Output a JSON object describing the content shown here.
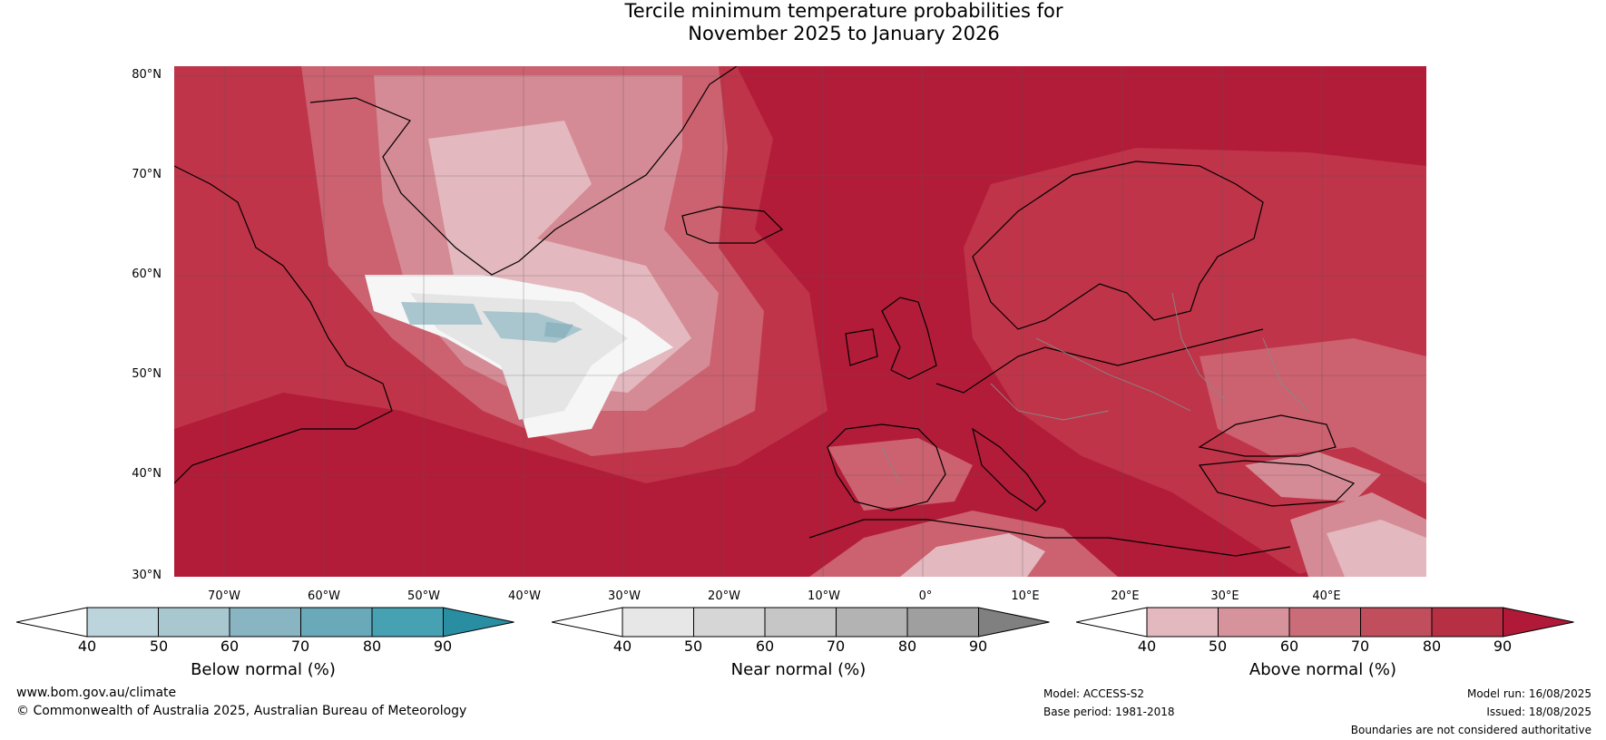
{
  "title": {
    "line1": "Tercile minimum temperature probabilities for",
    "line2": "November 2025 to January 2026"
  },
  "map": {
    "lat_labels": [
      "80°N",
      "70°N",
      "60°N",
      "50°N",
      "40°N",
      "30°N"
    ],
    "lon_labels": [
      "70°W",
      "60°W",
      "50°W",
      "40°W",
      "30°W",
      "20°W",
      "10°W",
      "0°",
      "10°E",
      "20°E",
      "30°E",
      "40°E"
    ],
    "colors": {
      "above_90": "#b21c39",
      "above_80": "#bf3448",
      "above_70": "#cc6170",
      "above_60": "#d58b95",
      "above_50": "#e3b8bf",
      "near_40": "#f6f6f6",
      "near_50": "#e5e5e5",
      "below_50": "#a9c6ce",
      "below_60": "#8fb5c1"
    }
  },
  "colorbars": [
    {
      "title": "Below normal (%)",
      "ticks": [
        "40",
        "50",
        "60",
        "70",
        "80",
        "90"
      ],
      "colors": [
        "#ffffff",
        "#bcd5dc",
        "#a8c7cf",
        "#89b4c1",
        "#6aa9ba",
        "#46a1b3",
        "#2a8ea3"
      ]
    },
    {
      "title": "Near normal (%)",
      "ticks": [
        "40",
        "50",
        "60",
        "70",
        "80",
        "90"
      ],
      "colors": [
        "#ffffff",
        "#e7e7e7",
        "#d6d6d6",
        "#c6c6c6",
        "#b3b3b3",
        "#9f9f9f",
        "#808080"
      ]
    },
    {
      "title": "Above normal (%)",
      "ticks": [
        "40",
        "50",
        "60",
        "70",
        "80",
        "90"
      ],
      "colors": [
        "#ffffff",
        "#e4b8bf",
        "#d7939c",
        "#cb6d79",
        "#c04e5c",
        "#b62f43",
        "#b01a38"
      ]
    }
  ],
  "footer": {
    "website": "www.bom.gov.au/climate",
    "copyright": "© Commonwealth of Australia 2025, Australian Bureau of Meteorology",
    "model": "Model: ACCESS-S2",
    "base_period": "Base period: 1981-2018",
    "model_run": "Model run: 16/08/2025",
    "issued": "Issued: 18/08/2025",
    "disclaimer": "Boundaries are not considered authoritative"
  }
}
